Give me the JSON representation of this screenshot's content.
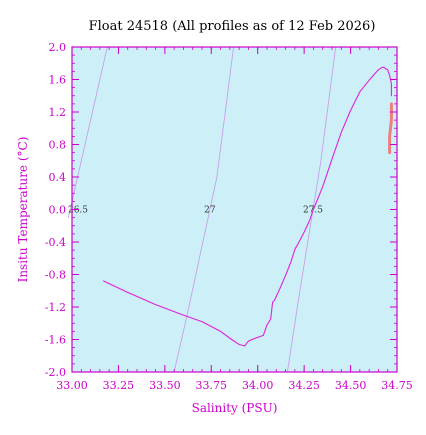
{
  "chart_data": {
    "type": "line",
    "title": "Float 24518  (All profiles as of 12 Feb 2026)",
    "xlabel": "Salinity (PSU)",
    "ylabel": "Insitu Temperature (°C)",
    "xlim": [
      33.0,
      34.75
    ],
    "ylim": [
      -2.0,
      2.0
    ],
    "x_ticks": [
      "33.00",
      "33.25",
      "33.50",
      "33.75",
      "34.00",
      "34.25",
      "34.50",
      "34.75"
    ],
    "y_ticks": [
      "-2.0",
      "-1.6",
      "-1.2",
      "-0.8",
      "-0.4",
      "0.0",
      "0.4",
      "0.8",
      "1.2",
      "1.6",
      "2.0"
    ],
    "grid": false,
    "colors": {
      "plot_background": "#cdf0f8",
      "axis": "#cc00cc",
      "profile_line": "#dd22dd",
      "recent_profile": "#f08080",
      "density_contours": "#c8a0e8"
    },
    "density_contours": [
      {
        "label": "26.5",
        "points": [
          [
            32.98,
            -0.1
          ],
          [
            33.19,
            2.0
          ]
        ]
      },
      {
        "label": "27",
        "points": [
          [
            33.55,
            -2.0
          ],
          [
            33.62,
            -1.3
          ],
          [
            33.78,
            0.4
          ],
          [
            33.87,
            2.0
          ]
        ]
      },
      {
        "label": "27.5",
        "points": [
          [
            34.16,
            -2.0
          ],
          [
            34.22,
            -1.1
          ],
          [
            34.34,
            0.6
          ],
          [
            34.42,
            2.0
          ]
        ]
      }
    ],
    "series": [
      {
        "x": [
          33.17,
          33.3,
          33.45,
          33.6,
          33.7,
          33.8,
          33.86,
          33.9,
          33.93,
          33.95,
          33.98,
          34.03,
          34.05,
          34.07,
          34.08,
          34.09,
          34.12,
          34.15,
          34.18,
          34.2,
          34.22,
          34.25,
          34.28,
          34.3,
          34.35,
          34.4,
          34.45,
          34.5,
          34.55,
          34.6,
          34.65,
          34.67,
          34.68,
          34.69,
          34.7,
          34.71,
          34.72,
          34.72
        ],
        "y": [
          -0.88,
          -1.02,
          -1.17,
          -1.3,
          -1.38,
          -1.5,
          -1.6,
          -1.66,
          -1.68,
          -1.62,
          -1.59,
          -1.55,
          -1.42,
          -1.35,
          -1.14,
          -1.12,
          -0.97,
          -0.81,
          -0.64,
          -0.49,
          -0.41,
          -0.28,
          -0.13,
          0.0,
          0.28,
          0.62,
          0.95,
          1.22,
          1.45,
          1.59,
          1.72,
          1.75,
          1.75,
          1.73,
          1.72,
          1.65,
          1.55,
          1.4
        ]
      },
      {
        "x": [
          34.71,
          34.71,
          34.72,
          34.72
        ],
        "y": [
          0.7,
          0.9,
          1.1,
          1.3
        ]
      }
    ]
  }
}
